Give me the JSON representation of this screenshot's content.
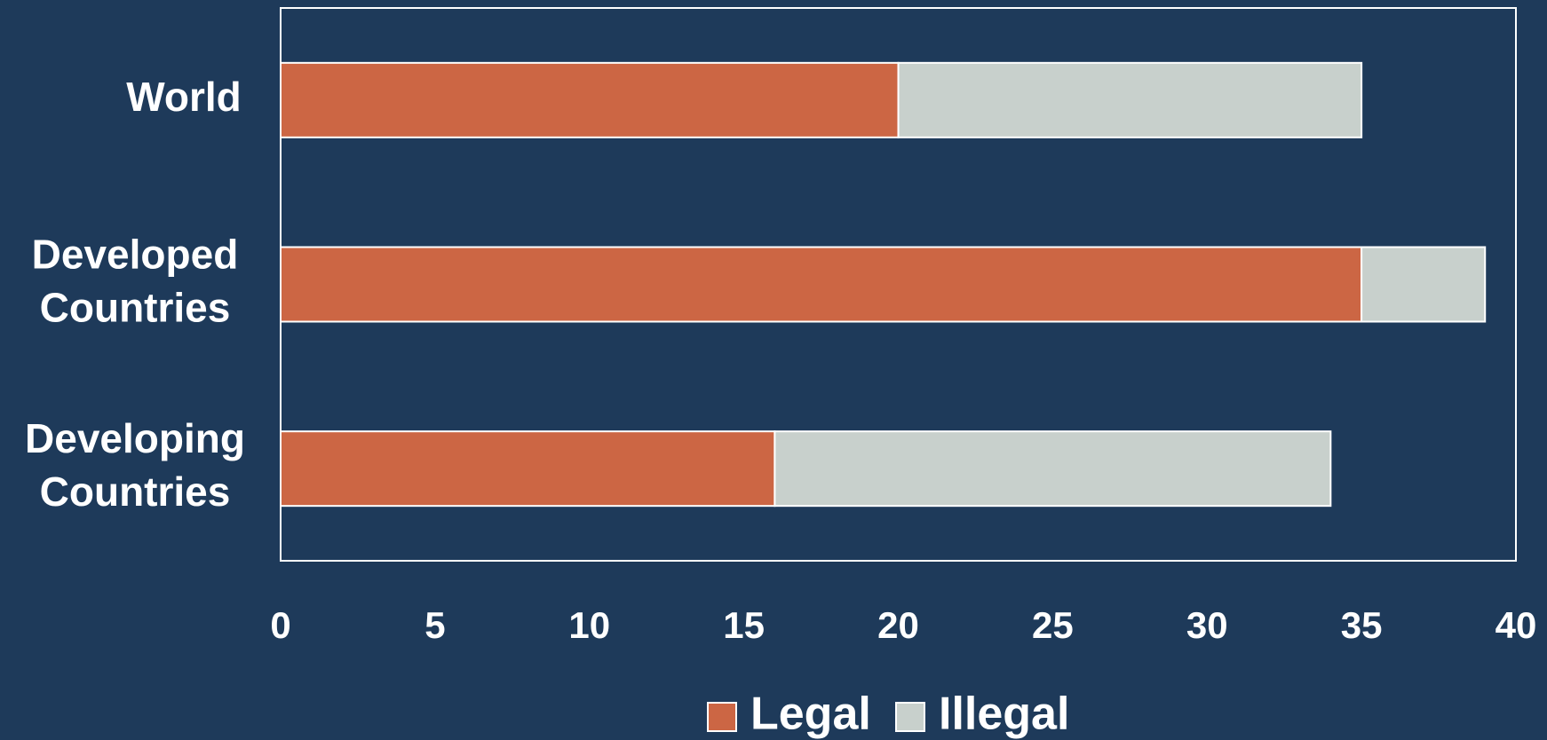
{
  "chart_data": {
    "type": "stacked_barh",
    "categories": [
      "World",
      "Developed Countries",
      "Developing Countries"
    ],
    "series": [
      {
        "name": "Legal",
        "color": "#cc6644",
        "values": [
          20,
          35,
          16
        ]
      },
      {
        "name": "Illegal",
        "color": "#c8d0cc",
        "values": [
          15,
          4,
          18
        ]
      }
    ],
    "xlim": [
      0,
      40
    ],
    "xticks": [
      0,
      5,
      10,
      15,
      20,
      25,
      30,
      35,
      40
    ],
    "grid": false
  }
}
